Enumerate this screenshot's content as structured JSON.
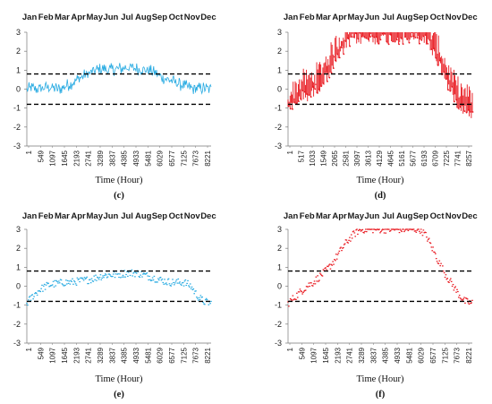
{
  "chart_data": [
    {
      "type": "line",
      "panel_label": "(c)",
      "months": [
        "Jan",
        "Feb",
        "Mar",
        "Apr",
        "May",
        "Jun",
        "Jul",
        "Aug",
        "Sep",
        "Oct",
        "Nov",
        "Dec"
      ],
      "xlabel": "Time (Hour)",
      "ylabel": "",
      "xlim": [
        1,
        8760
      ],
      "ylim": [
        -3,
        3
      ],
      "yticks": [
        "3",
        "2",
        "1",
        "0",
        "-1",
        "-2",
        "-3"
      ],
      "xtick_labels": [
        "1",
        "549",
        "1097",
        "1645",
        "2193",
        "2741",
        "3289",
        "3837",
        "4385",
        "4933",
        "5481",
        "6029",
        "6577",
        "7125",
        "7673",
        "8221"
      ],
      "thresholds": [
        0.8,
        -0.8
      ],
      "series": [
        {
          "color": "#29abe2",
          "style": "jagged-line",
          "x": [
            1,
            300,
            600,
            900,
            1200,
            1500,
            1800,
            2100,
            2400,
            2700,
            3000,
            3300,
            3600,
            3900,
            4200,
            4500,
            4800,
            5100,
            5400,
            5700,
            6000,
            6300,
            6600,
            6900,
            7200,
            7500,
            7800,
            8100,
            8400,
            8760
          ],
          "y": [
            0.0,
            0.05,
            0.0,
            0.1,
            0.1,
            0.0,
            0.15,
            0.3,
            0.5,
            0.7,
            0.85,
            1.0,
            1.05,
            1.0,
            1.05,
            1.1,
            1.15,
            1.1,
            1.05,
            1.0,
            0.9,
            0.7,
            0.55,
            0.45,
            0.3,
            0.15,
            0.05,
            0.0,
            0.05,
            0.0
          ],
          "spread": 0.35
        }
      ]
    },
    {
      "type": "line",
      "panel_label": "(d)",
      "months": [
        "Jan",
        "Feb",
        "Mar",
        "Apr",
        "May",
        "Jun",
        "Jul",
        "Aug",
        "Sep",
        "Oct",
        "Nov",
        "Dec"
      ],
      "xlabel": "Time (Hour)",
      "ylabel": "",
      "xlim": [
        1,
        8760
      ],
      "ylim": [
        -3,
        3
      ],
      "yticks": [
        "3",
        "2",
        "1",
        "0",
        "-1",
        "-2",
        "-3"
      ],
      "xtick_labels": [
        "1",
        "517",
        "1033",
        "1549",
        "2065",
        "2581",
        "3097",
        "3613",
        "4129",
        "4645",
        "5161",
        "5677",
        "6193",
        "6709",
        "7225",
        "7741",
        "8257"
      ],
      "thresholds": [
        0.8,
        -0.8
      ],
      "series": [
        {
          "color": "#e8141b",
          "style": "spike-segments",
          "x": [
            1,
            250,
            500,
            750,
            1000,
            1250,
            1500,
            1750,
            2000,
            2250,
            2500,
            2750,
            3000,
            3250,
            6500,
            6750,
            7000,
            7250,
            7500,
            7750,
            8000,
            8250,
            8500,
            8760
          ],
          "y": [
            -0.8,
            -0.6,
            -0.2,
            0.0,
            0.0,
            0.2,
            0.5,
            0.9,
            1.3,
            1.8,
            2.2,
            2.6,
            2.9,
            3.0,
            3.0,
            2.6,
            2.1,
            1.5,
            0.8,
            0.2,
            -0.3,
            -0.6,
            -0.8,
            -0.9
          ],
          "spread": 1.1
        }
      ]
    },
    {
      "type": "scatter",
      "panel_label": "(e)",
      "months": [
        "Jan",
        "Feb",
        "Mar",
        "Apr",
        "May",
        "Jun",
        "Jul",
        "Aug",
        "Sep",
        "Oct",
        "Nov",
        "Dec"
      ],
      "xlabel": "Time (Hour)",
      "ylabel": "",
      "xlim": [
        1,
        8760
      ],
      "ylim": [
        -3,
        3
      ],
      "yticks": [
        "3",
        "2",
        "1",
        "0",
        "-1",
        "-2",
        "-3"
      ],
      "xtick_labels": [
        "1",
        "549",
        "1097",
        "1645",
        "2193",
        "2741",
        "3289",
        "3837",
        "4385",
        "4933",
        "5481",
        "6029",
        "6577",
        "7125",
        "7673",
        "8221"
      ],
      "thresholds": [
        0.8,
        -0.8
      ],
      "series": [
        {
          "color": "#29abe2",
          "style": "dotted-band",
          "x": [
            1,
            300,
            600,
            900,
            1200,
            1500,
            1800,
            2100,
            2400,
            2700,
            3000,
            3300,
            3600,
            3900,
            4200,
            4500,
            4800,
            5100,
            5400,
            5700,
            6000,
            6300,
            6600,
            6900,
            7200,
            7500,
            7800,
            8100,
            8400,
            8760
          ],
          "y": [
            -0.9,
            -0.5,
            -0.2,
            0.0,
            0.1,
            0.15,
            0.2,
            0.2,
            0.25,
            0.3,
            0.35,
            0.45,
            0.55,
            0.6,
            0.6,
            0.65,
            0.7,
            0.7,
            0.65,
            0.55,
            0.45,
            0.35,
            0.25,
            0.2,
            0.2,
            0.2,
            0.0,
            -0.5,
            -0.8,
            -0.9
          ],
          "spread": 0.2
        }
      ]
    },
    {
      "type": "scatter",
      "panel_label": "(f)",
      "months": [
        "Jan",
        "Feb",
        "Mar",
        "Apr",
        "May",
        "Jun",
        "Jul",
        "Aug",
        "Sep",
        "Oct",
        "Nov",
        "Dec"
      ],
      "xlabel": "Time (Hour)",
      "ylabel": "",
      "xlim": [
        1,
        8760
      ],
      "ylim": [
        -3,
        3
      ],
      "yticks": [
        "3",
        "2",
        "1",
        "0",
        "-1",
        "-2",
        "-3"
      ],
      "xtick_labels": [
        "1",
        "549",
        "1097",
        "1645",
        "2193",
        "2741",
        "3289",
        "3837",
        "4385",
        "4933",
        "5481",
        "6029",
        "6577",
        "7125",
        "7673",
        "8221"
      ],
      "thresholds": [
        0.8,
        -0.8
      ],
      "series": [
        {
          "color": "#e8141b",
          "style": "dotted-band",
          "x": [
            1,
            300,
            600,
            900,
            1200,
            1500,
            1800,
            2100,
            2400,
            2700,
            3000,
            3300,
            3600,
            6300,
            6600,
            6900,
            7200,
            7500,
            7800,
            8100,
            8400,
            8760
          ],
          "y": [
            -0.9,
            -0.6,
            -0.3,
            0.0,
            0.2,
            0.5,
            0.8,
            1.2,
            1.7,
            2.2,
            2.6,
            2.9,
            3.0,
            3.0,
            2.6,
            1.9,
            1.2,
            0.6,
            0.1,
            -0.4,
            -0.8,
            -0.9
          ],
          "spread": 0.2
        }
      ]
    }
  ]
}
